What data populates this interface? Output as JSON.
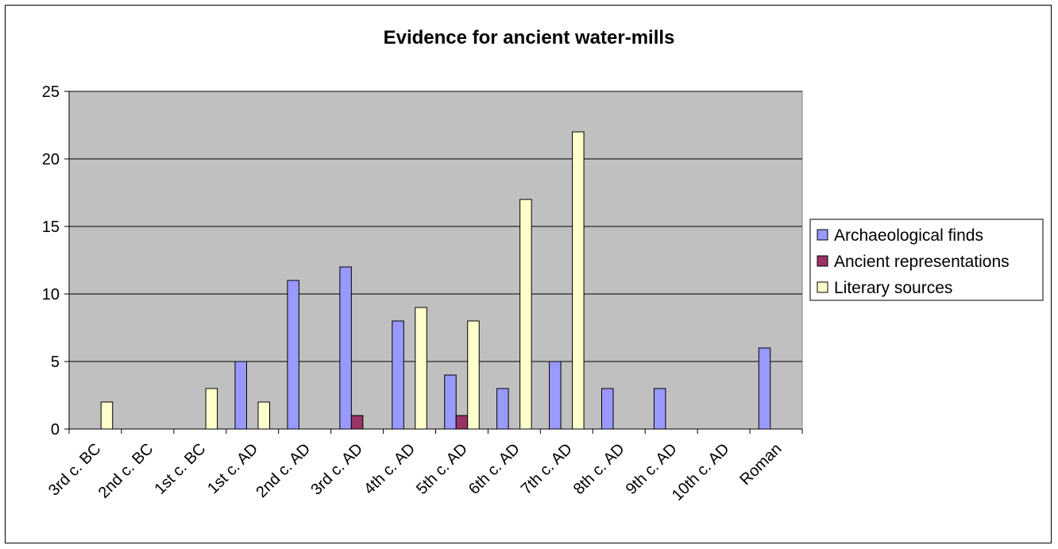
{
  "chart_data": {
    "type": "bar",
    "title": "Evidence for ancient water-mills",
    "xlabel": "",
    "ylabel": "",
    "ylim": [
      0,
      25
    ],
    "yticks": [
      0,
      5,
      10,
      15,
      20,
      25
    ],
    "grid": true,
    "legend_position": "right",
    "categories": [
      "3rd c. BC",
      "2nd c. BC",
      "1st c. BC",
      "1st c. AD",
      "2nd c. AD",
      "3rd c. AD",
      "4th c. AD",
      "5th c. AD",
      "6th c. AD",
      "7th c. AD",
      "8th c. AD",
      "9th c. AD",
      "10th c. AD",
      "Roman"
    ],
    "series": [
      {
        "name": "Archaeological finds",
        "color": "#9999FF",
        "values": [
          0,
          0,
          0,
          5,
          11,
          12,
          8,
          4,
          3,
          5,
          3,
          3,
          0,
          6
        ]
      },
      {
        "name": "Ancient representations",
        "color": "#993366",
        "values": [
          0,
          0,
          0,
          0,
          0,
          1,
          0,
          1,
          0,
          0,
          0,
          0,
          0,
          0
        ]
      },
      {
        "name": "Literary sources",
        "color": "#FFFFCC",
        "values": [
          2,
          0,
          3,
          2,
          0,
          0,
          9,
          8,
          17,
          22,
          0,
          0,
          0,
          0
        ]
      }
    ],
    "colors": {
      "plot_background": "#C0C0C0",
      "gridline": "#000000",
      "bar_outline": "#000000"
    }
  }
}
